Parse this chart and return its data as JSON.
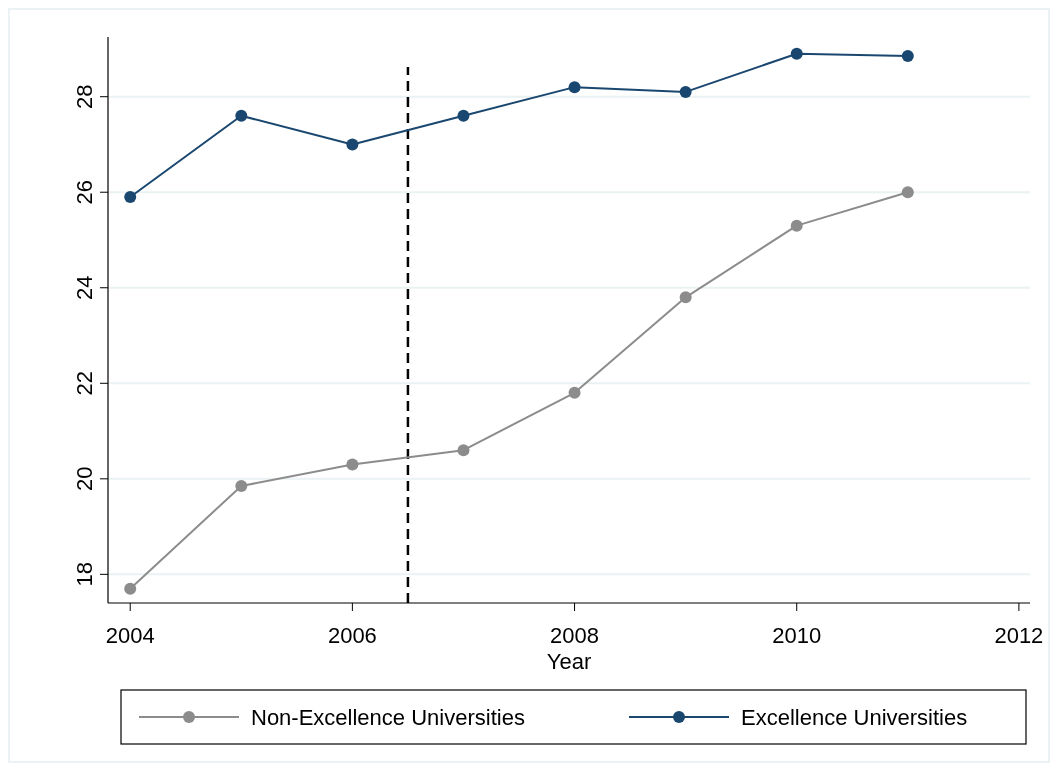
{
  "chart_data": {
    "type": "line",
    "xlabel": "Year",
    "x": [
      2004,
      2005,
      2006,
      2007,
      2008,
      2009,
      2010,
      2011
    ],
    "series": [
      {
        "name": "Non-Excellence Universities",
        "color": "#8c8c8c",
        "values": [
          17.7,
          19.85,
          20.3,
          20.6,
          21.8,
          23.8,
          25.3,
          26.0
        ]
      },
      {
        "name": "Excellence Universities",
        "color": "#1a476f",
        "values": [
          25.9,
          27.6,
          27.0,
          27.6,
          28.2,
          28.1,
          28.9,
          28.85
        ]
      }
    ],
    "xlim": [
      2003.8,
      2012.1
    ],
    "xticks": [
      2004,
      2006,
      2008,
      2010,
      2012
    ],
    "ylim": [
      17.4,
      29.25
    ],
    "yticks": [
      18,
      20,
      22,
      24,
      26,
      28
    ],
    "grid": "y",
    "legend": "bottom",
    "marker": "circle",
    "line_style": "solid",
    "ref_lines": [
      {
        "axis": "x",
        "value": 2006.5,
        "color": "#000000",
        "line_style": "dashed"
      }
    ]
  }
}
